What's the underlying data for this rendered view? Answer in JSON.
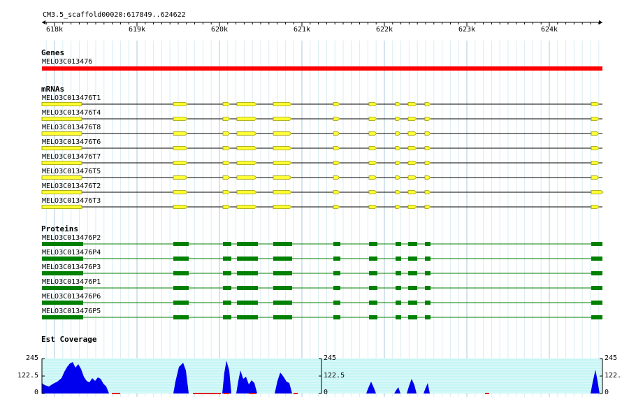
{
  "location": "CM3.5_scaffold00020:617849..624622",
  "ruler": {
    "ticks": [
      "618k",
      "619k",
      "620k",
      "621k",
      "622k",
      "623k",
      "624k"
    ]
  },
  "colors": {
    "gene": "#ff0000",
    "mrna_fill": "#ffff33",
    "mrna_stroke": "#999900",
    "protein": "#008000",
    "coverage_fill": "#0000ee",
    "coverage_bg": "#c6f5f5",
    "grid_major": "#a8c8d8",
    "grid_minor": "#d8ecf2"
  },
  "tracks": {
    "genes": {
      "title": "Genes",
      "items": [
        {
          "label": "MELO3C013476",
          "icon": "gene-bar"
        }
      ]
    },
    "mrnas": {
      "title": "mRNAs",
      "items": [
        {
          "label": "MELO3C013476T1"
        },
        {
          "label": "MELO3C013476T4"
        },
        {
          "label": "MELO3C013476T8"
        },
        {
          "label": "MELO3C013476T6"
        },
        {
          "label": "MELO3C013476T7"
        },
        {
          "label": "MELO3C013476T5"
        },
        {
          "label": "MELO3C013476T2"
        },
        {
          "label": "MELO3C013476T3"
        }
      ]
    },
    "proteins": {
      "title": "Proteins",
      "items": [
        {
          "label": "MELO3C013476P2"
        },
        {
          "label": "MELO3C013476P4"
        },
        {
          "label": "MELO3C013476P3"
        },
        {
          "label": "MELO3C013476P1"
        },
        {
          "label": "MELO3C013476P6"
        },
        {
          "label": "MELO3C013476P5"
        }
      ]
    },
    "coverage": {
      "title": "Est Coverage",
      "axis_labels": [
        "245",
        "122.5",
        "0"
      ]
    }
  }
}
